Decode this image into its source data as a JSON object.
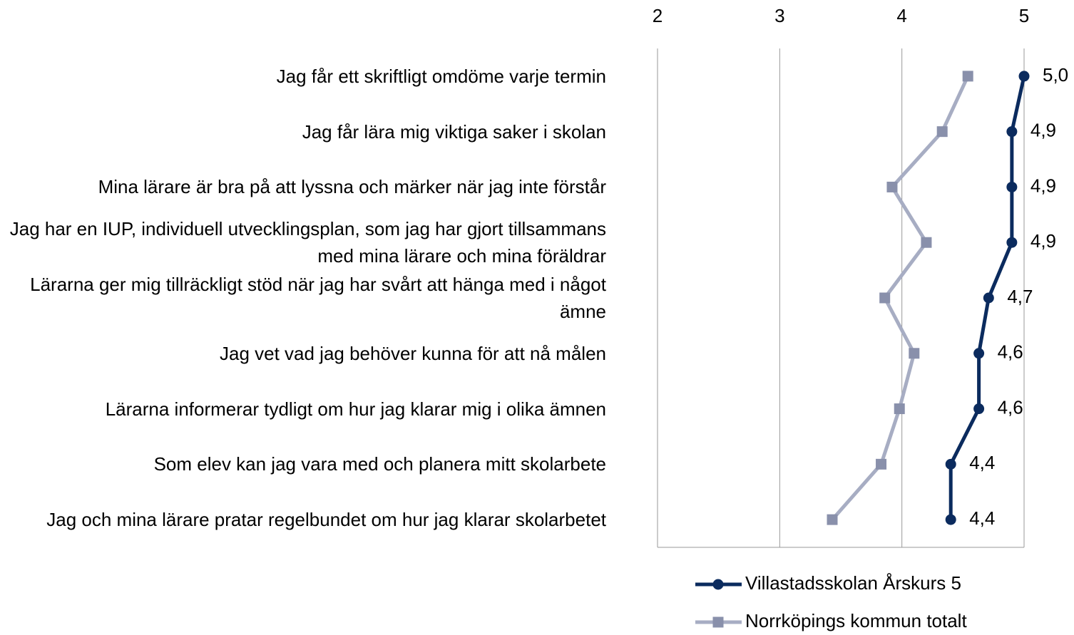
{
  "chart_data": {
    "type": "line",
    "orientation": "horizontal",
    "categories": [
      "Jag får ett skriftligt omdöme varje termin",
      "Jag får lära mig viktiga saker i skolan",
      "Mina lärare är bra på att lyssna och märker när jag inte förstår",
      "Jag har en IUP, individuell utvecklingsplan, som jag har gjort tillsammans med mina lärare och mina föräldrar",
      "Lärarna ger mig tillräckligt stöd när jag har svårt att hänga med i något ämne",
      "Jag vet vad jag behöver kunna för att nå målen",
      "Lärarna informerar tydligt om hur jag klarar mig i olika ämnen",
      "Som elev kan jag vara med och planera mitt skolarbete",
      "Jag och mina lärare pratar regelbundet om hur jag klarar skolarbetet"
    ],
    "series": [
      {
        "name": "Villastadsskolan Årskurs 5",
        "color": "#0b2b5e",
        "marker": "circle",
        "values": [
          5.0,
          4.9,
          4.9,
          4.9,
          4.71,
          4.63,
          4.63,
          4.4,
          4.4
        ],
        "value_labels": [
          "5,0",
          "4,9",
          "4,9",
          "4,9",
          "4,7",
          "4,6",
          "4,6",
          "4,4",
          "4,4"
        ]
      },
      {
        "name": "Norrköpings kommun totalt",
        "color": "#a7adc3",
        "marker_color": "#8990ab",
        "marker": "square",
        "values": [
          4.54,
          4.33,
          3.92,
          4.2,
          3.86,
          4.1,
          3.98,
          3.83,
          3.43
        ]
      }
    ],
    "xlim": [
      2,
      5
    ],
    "xticks": [
      2,
      3,
      4,
      5
    ],
    "grid": true,
    "legend": "bottom"
  }
}
